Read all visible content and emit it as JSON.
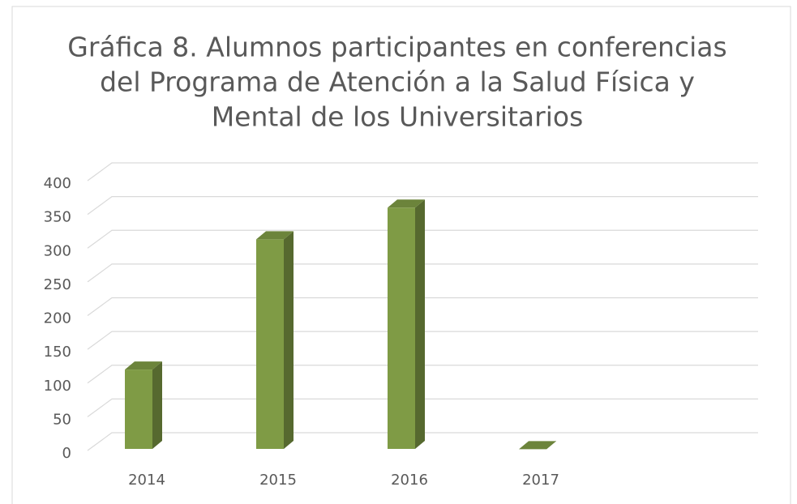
{
  "chart_data": {
    "type": "bar3d",
    "title": [
      "Gráfica 8. Alumnos participantes en conferencias",
      "del Programa de Atención a la Salud Física y",
      "Mental de los Universitarios"
    ],
    "categories": [
      "2014",
      "2015",
      "2016",
      "2017"
    ],
    "values": [
      120,
      313,
      360,
      2
    ],
    "color": "#7f9b45",
    "ylim": [
      0,
      400
    ],
    "yticks": [
      0,
      50,
      100,
      150,
      200,
      250,
      300,
      350,
      400
    ],
    "grid": true
  }
}
